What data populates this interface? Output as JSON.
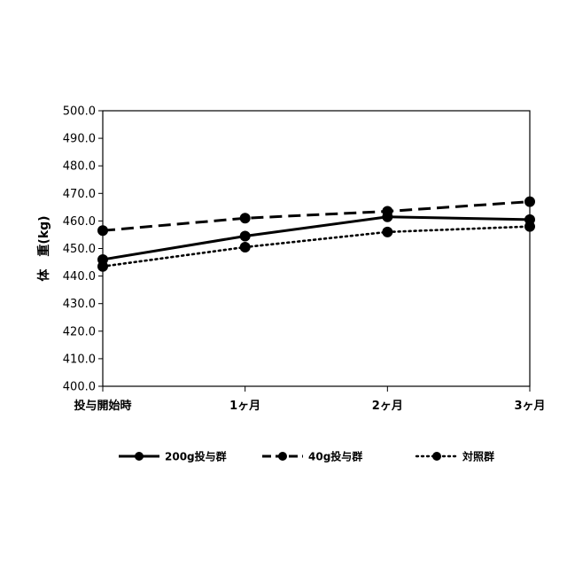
{
  "chart_data": {
    "type": "line",
    "title": "",
    "xlabel": "",
    "ylabel": "体　重(kg)",
    "ylim": [
      400,
      500
    ],
    "y_ticks": [
      "400.0",
      "410.0",
      "420.0",
      "430.0",
      "440.0",
      "450.0",
      "460.0",
      "470.0",
      "480.0",
      "490.0",
      "500.0"
    ],
    "categories": [
      "投与開始時",
      "1ヶ月",
      "2ヶ月",
      "3ヶ月"
    ],
    "grid": false,
    "legend_position": "bottom",
    "series": [
      {
        "name": "200g投与群",
        "values": [
          446.0,
          454.5,
          461.5,
          460.5
        ],
        "style": "solid",
        "color": "#000000"
      },
      {
        "name": "40g投与群",
        "values": [
          456.5,
          461.0,
          463.5,
          467.0
        ],
        "style": "dashed",
        "color": "#000000"
      },
      {
        "name": "対照群",
        "values": [
          443.5,
          450.5,
          456.0,
          458.0
        ],
        "style": "dotted",
        "color": "#000000"
      }
    ]
  }
}
